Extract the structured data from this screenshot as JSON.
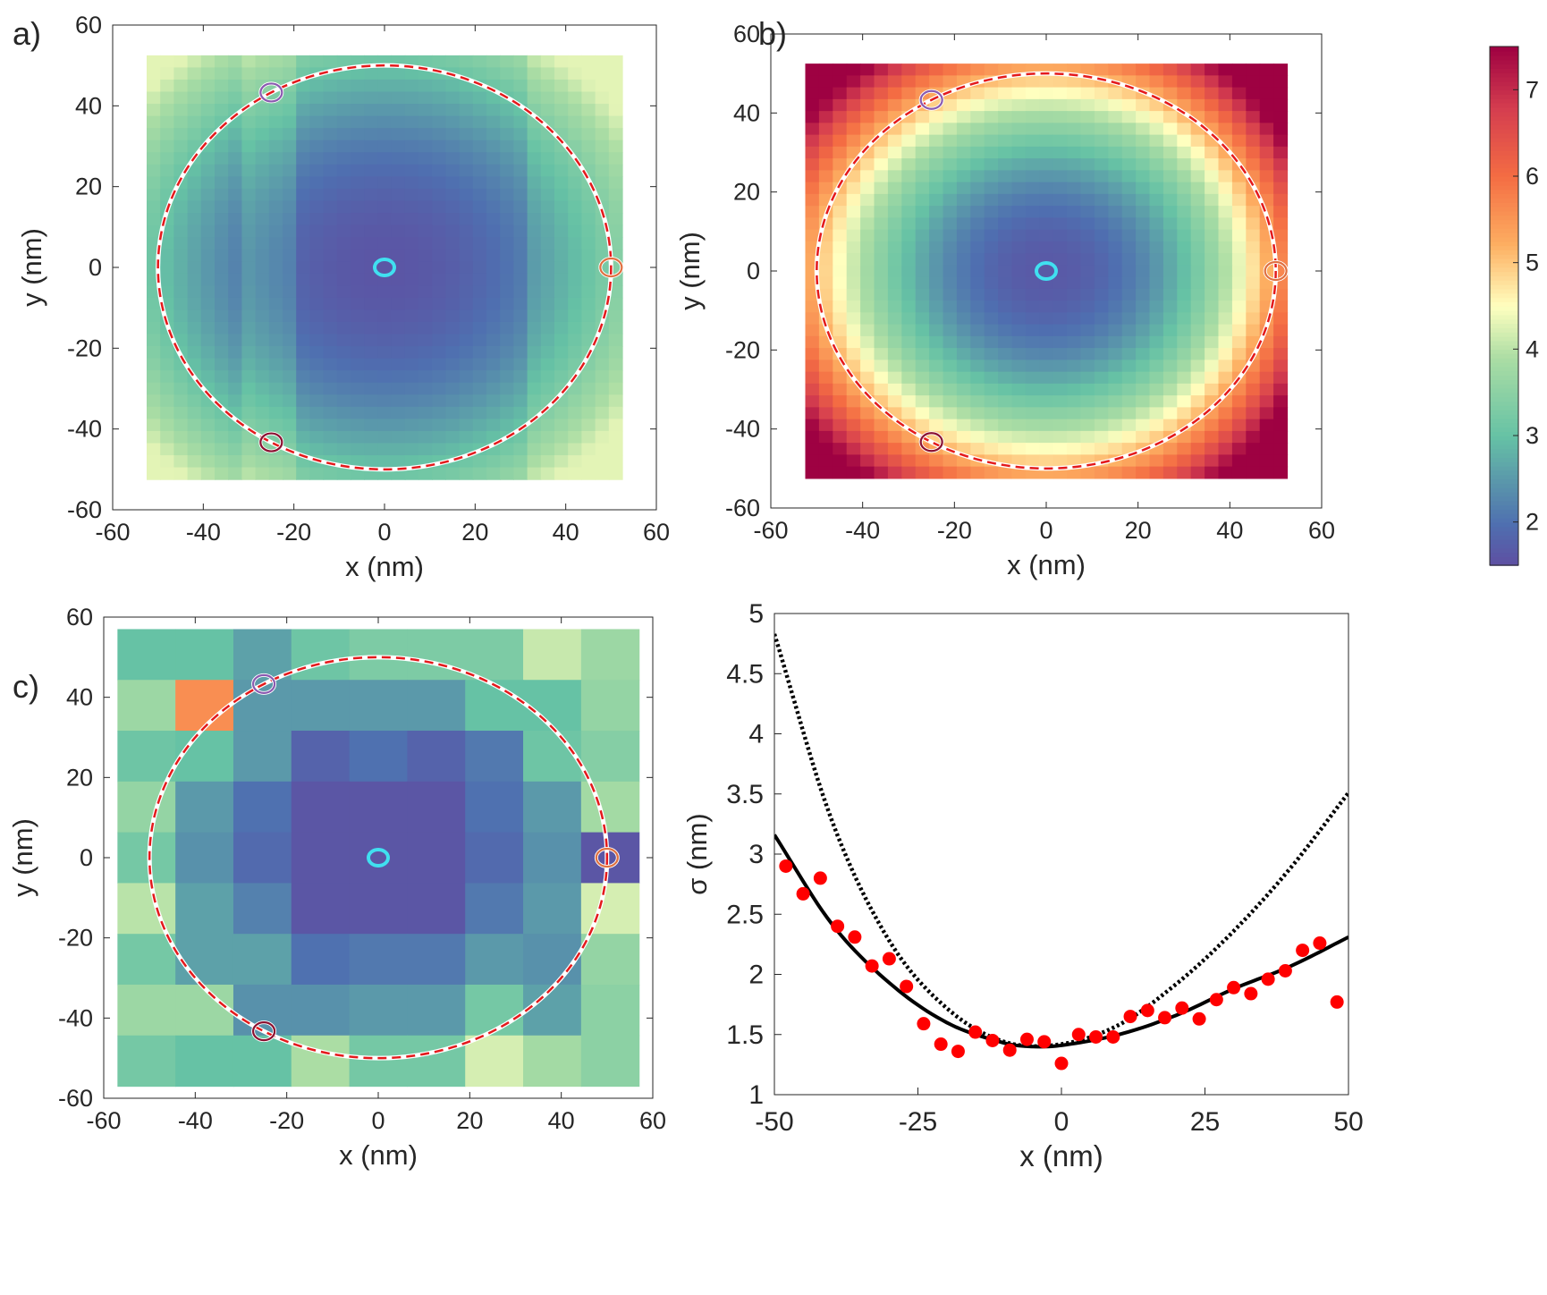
{
  "colors": {
    "dark": "#5e4fa2",
    "teal": "#66c2a5",
    "cream": "#ffffbf",
    "orange": "#f46d43",
    "red": "#d53e4f",
    "maroon": "#9e0142",
    "fit_dash": "#e41a1c",
    "center_marker": "#40e0f0",
    "marker_orange": "#e07040",
    "marker_purple": "#8a5ab0",
    "marker_maroon": "#8a1030",
    "points": "#ff0000"
  },
  "panels": {
    "a": {
      "label": "a)"
    },
    "b": {
      "label": "b)"
    },
    "c": {
      "label": "c)"
    }
  },
  "chart_data": [
    {
      "id": "a",
      "type": "heatmap",
      "xlabel": "x (nm)",
      "ylabel": "y (nm)",
      "xlim": [
        -60,
        60
      ],
      "ylim": [
        -60,
        60
      ],
      "xticks": [
        "-60",
        "-40",
        "-20",
        "0",
        "20",
        "40",
        "60"
      ],
      "yticks": [
        "-60",
        "-40",
        "-20",
        "0",
        "20",
        "40",
        "60"
      ],
      "data_extent": [
        -52.5,
        52.5
      ],
      "grid_size": 35,
      "circle_radius": 50,
      "value_range": [
        1.5,
        7.5
      ],
      "markers": [
        [
          0,
          0
        ],
        [
          -25,
          43.3
        ],
        [
          -25,
          -43.3
        ],
        [
          50,
          0
        ]
      ]
    },
    {
      "id": "b",
      "type": "heatmap",
      "xlabel": "x (nm)",
      "ylabel": "y (nm)",
      "xlim": [
        -60,
        60
      ],
      "ylim": [
        -60,
        60
      ],
      "xticks": [
        "-60",
        "-40",
        "-20",
        "0",
        "20",
        "40",
        "60"
      ],
      "yticks": [
        "-60",
        "-40",
        "-20",
        "0",
        "20",
        "40",
        "60"
      ],
      "data_extent": [
        -52.5,
        52.5
      ],
      "grid_size": 35,
      "circle_radius": 50,
      "value_range": [
        1.5,
        7.5
      ],
      "markers": [
        [
          0,
          0
        ],
        [
          -25,
          43.3
        ],
        [
          -25,
          -43.3
        ],
        [
          50,
          0
        ]
      ],
      "colorbar": {
        "ticks": [
          "2",
          "3",
          "4",
          "5",
          "6",
          "7"
        ],
        "min": 1.5,
        "max": 7.5
      }
    },
    {
      "id": "c",
      "type": "heatmap",
      "xlabel": "x (nm)",
      "ylabel": "y (nm)",
      "xlim": [
        -60,
        60
      ],
      "ylim": [
        -60,
        60
      ],
      "xticks": [
        "-60",
        "-40",
        "-20",
        "0",
        "20",
        "40",
        "60"
      ],
      "yticks": [
        "-60",
        "-40",
        "-20",
        "0",
        "20",
        "40",
        "60"
      ],
      "data_extent": [
        -57,
        57
      ],
      "grid_size": 9,
      "circle_radius": 50,
      "value_range": [
        1.5,
        7.5
      ],
      "markers": [
        [
          0,
          0
        ],
        [
          -25,
          43.3
        ],
        [
          -25,
          -43.3
        ],
        [
          50,
          0
        ]
      ],
      "cells": [
        [
          3.0,
          3.0,
          2.6,
          3.1,
          3.3,
          3.3,
          3.3,
          4.1,
          3.7
        ],
        [
          3.7,
          5.6,
          2.5,
          2.5,
          2.5,
          2.5,
          3.0,
          3.0,
          3.6
        ],
        [
          3.1,
          3.0,
          2.5,
          1.8,
          2.0,
          1.8,
          2.1,
          3.1,
          3.4
        ],
        [
          3.6,
          2.5,
          2.0,
          1.6,
          1.6,
          1.6,
          2.0,
          2.5,
          3.8
        ],
        [
          3.2,
          2.4,
          1.9,
          1.6,
          1.6,
          1.6,
          1.9,
          2.4,
          1.6
        ],
        [
          4.0,
          2.6,
          2.2,
          1.6,
          1.6,
          1.6,
          2.1,
          2.5,
          4.2
        ],
        [
          3.2,
          2.6,
          2.6,
          2.0,
          2.1,
          2.1,
          2.5,
          2.4,
          3.6
        ],
        [
          3.7,
          3.7,
          2.4,
          2.4,
          2.5,
          2.5,
          3.2,
          2.6,
          3.5
        ],
        [
          3.2,
          3.0,
          3.0,
          3.9,
          3.2,
          3.2,
          4.2,
          3.8,
          3.5
        ]
      ]
    },
    {
      "id": "d",
      "type": "line",
      "xlabel": "x (nm)",
      "ylabel": "σ   (nm)",
      "xlim": [
        -50,
        50
      ],
      "ylim": [
        1,
        5
      ],
      "xticks": [
        "-50",
        "-25",
        "0",
        "25",
        "50"
      ],
      "yticks": [
        "1",
        "1.5",
        "2",
        "2.5",
        "3",
        "3.5",
        "4",
        "4.5",
        "5"
      ],
      "scatter": {
        "x": [
          -48,
          -45,
          -42,
          -39,
          -36,
          -33,
          -30,
          -27,
          -24,
          -21,
          -18,
          -15,
          -12,
          -9,
          -6,
          -3,
          0,
          3,
          6,
          9,
          12,
          15,
          18,
          21,
          24,
          27,
          30,
          33,
          36,
          39,
          42,
          45,
          48
        ],
        "y": [
          2.9,
          2.67,
          2.8,
          2.4,
          2.31,
          2.07,
          2.13,
          1.9,
          1.59,
          1.42,
          1.36,
          1.52,
          1.45,
          1.37,
          1.46,
          1.44,
          1.26,
          1.5,
          1.48,
          1.48,
          1.65,
          1.7,
          1.64,
          1.72,
          1.63,
          1.79,
          1.89,
          1.84,
          1.96,
          2.03,
          2.2,
          2.26,
          1.77
        ]
      },
      "series": [
        {
          "name": "solid fit",
          "style": "solid",
          "x": [
            -50,
            -40,
            -30,
            -20,
            -10,
            -5,
            0,
            10,
            20,
            30,
            40,
            50
          ],
          "y": [
            3.16,
            2.42,
            1.93,
            1.6,
            1.43,
            1.4,
            1.41,
            1.5,
            1.66,
            1.88,
            2.07,
            2.31
          ]
        },
        {
          "name": "dotted fit",
          "style": "dotted",
          "x": [
            -50,
            -40,
            -30,
            -20,
            -10,
            0,
            10,
            20,
            30,
            40,
            50
          ],
          "y": [
            4.83,
            3.28,
            2.28,
            1.72,
            1.44,
            1.42,
            1.58,
            1.92,
            2.36,
            2.89,
            3.51
          ]
        }
      ]
    }
  ]
}
